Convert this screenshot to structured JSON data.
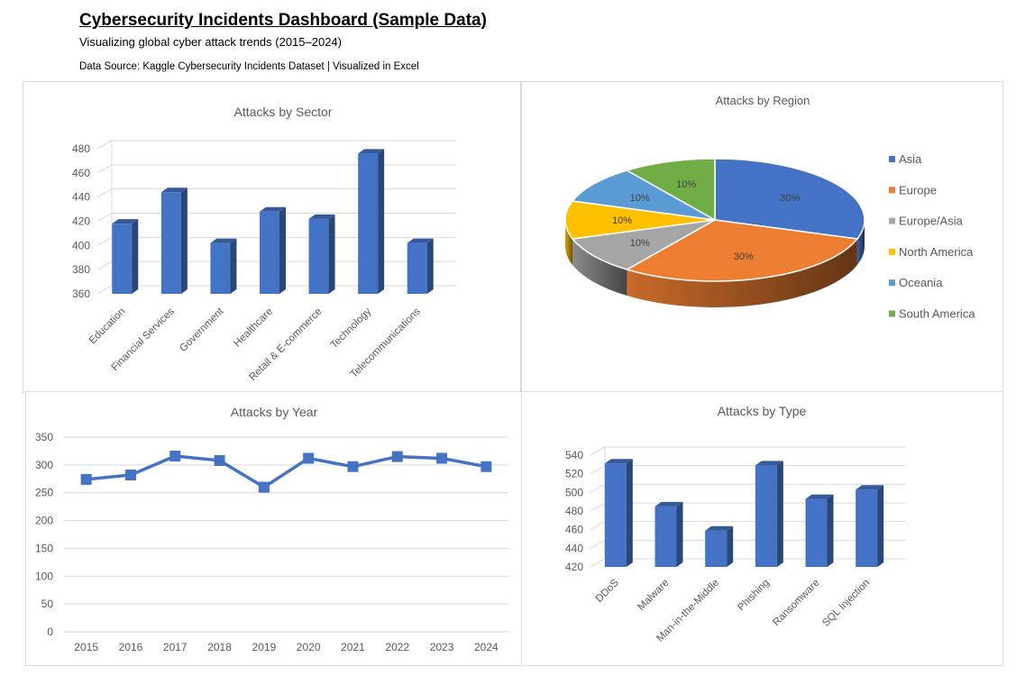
{
  "header": {
    "title": "Cybersecurity Incidents Dashboard (Sample Data)",
    "subtitle": "Visualizing global cyber attack trends (2015–2024)",
    "source": "Data Source: Kaggle Cybersecurity Incidents Dataset | Visualized in Excel"
  },
  "colors": {
    "blue": "#4472c4",
    "orange": "#ed7d31",
    "gray": "#a5a5a5",
    "gold": "#ffc000",
    "lightblue": "#5b9bd5",
    "green": "#70ad47"
  },
  "chart_data": [
    {
      "type": "bar",
      "title": "Attacks by Sector",
      "categories": [
        "Education",
        "Financial Services",
        "Government",
        "Healthcare",
        "Retail & E-commerce",
        "Technology",
        "Telecommunications"
      ],
      "values": [
        418,
        444,
        402,
        428,
        422,
        476,
        402
      ],
      "ylim": [
        360,
        480
      ],
      "yticks": [
        360,
        380,
        400,
        420,
        440,
        460,
        480
      ],
      "grid": true
    },
    {
      "type": "pie",
      "title": "Attacks by Region",
      "labels": [
        "Asia",
        "Europe",
        "Europe/Asia",
        "North America",
        "Oceania",
        "South America"
      ],
      "values": [
        30,
        30,
        10,
        10,
        10,
        10
      ],
      "value_labels": [
        "30%",
        "30%",
        "10%",
        "10%",
        "10%",
        "10%"
      ],
      "legend": "right"
    },
    {
      "type": "line",
      "title": "Attacks by Year",
      "x": [
        "2015",
        "2016",
        "2017",
        "2018",
        "2019",
        "2020",
        "2021",
        "2022",
        "2023",
        "2024"
      ],
      "values": [
        274,
        282,
        316,
        308,
        260,
        312,
        297,
        315,
        312,
        297
      ],
      "ylim": [
        0,
        350
      ],
      "yticks": [
        0,
        50,
        100,
        150,
        200,
        250,
        300,
        350
      ],
      "grid": true
    },
    {
      "type": "bar",
      "title": "Attacks by Type",
      "categories": [
        "DDoS",
        "Malware",
        "Man-in-the-Middle",
        "Phishing",
        "Ransomware",
        "SQL Injection"
      ],
      "values": [
        531,
        485,
        459,
        529,
        493,
        503
      ],
      "ylim": [
        420,
        540
      ],
      "yticks": [
        420,
        440,
        460,
        480,
        500,
        520,
        540
      ],
      "grid": true
    }
  ]
}
